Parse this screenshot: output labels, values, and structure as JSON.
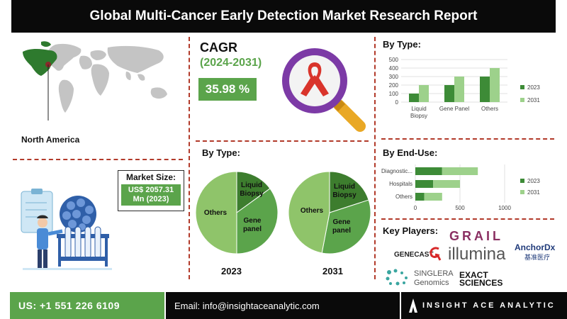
{
  "header": {
    "title": "Global Multi-Cancer Early Detection Market  Research Report"
  },
  "region": {
    "label": "North America"
  },
  "market_size": {
    "title": "Market Size:",
    "value_line1": "US$ 2057.31",
    "value_line2": "Mn (2023)"
  },
  "cagr": {
    "title": "CAGR",
    "years": "(2024-2031)",
    "value": "35.98 %"
  },
  "pie_section": {
    "title": "By Type:",
    "labels": {
      "others": "Others",
      "liquid1": "Liquid",
      "liquid2": "Biopsy",
      "gene1": "Gene",
      "gene2": "panel"
    }
  },
  "type_bar_section": {
    "title": "By Type:"
  },
  "enduse_section": {
    "title": "By End-Use:"
  },
  "key_players": {
    "title": "Key Players:",
    "grail": "GRAIL",
    "genecast": "GENECAST",
    "illumina": "illumina",
    "anchordx": "AnchorDx",
    "anchordx_sub": "基准医疗",
    "singlera": "SINGLERA",
    "singlera_sub": "Genomics",
    "exact1": "EXACT",
    "exact2": "SCIENCES"
  },
  "footer": {
    "phone": "US: +1 551 226 6109",
    "email": "Email: info@insightaceanalytic.com",
    "brand": "INSIGHT ACE ANALYTIC"
  },
  "colors": {
    "dark_green": "#3d8b37",
    "light_green": "#9dd18b",
    "pie_light": "#8fc46a",
    "pie_mid": "#5ba44b",
    "pie_dark": "#3d7d2e",
    "accent_red": "#b23a2a"
  },
  "chart_data": [
    {
      "type": "pie",
      "title": "2023",
      "slices": [
        {
          "name": "Liquid Biopsy",
          "value": 15
        },
        {
          "name": "Gene panel",
          "value": 35
        },
        {
          "name": "Others",
          "value": 50
        }
      ]
    },
    {
      "type": "pie",
      "title": "2031",
      "slices": [
        {
          "name": "Liquid Biopsy",
          "value": 20
        },
        {
          "name": "Gene panel",
          "value": 33
        },
        {
          "name": "Others",
          "value": 47
        }
      ]
    },
    {
      "type": "bar",
      "title": "By Type:",
      "orientation": "vertical",
      "categories": [
        "Liquid Biopsy",
        "Gene Panel",
        "Others"
      ],
      "category_labels": [
        [
          "Liquid",
          "Biopsy"
        ],
        [
          "Gene Panel"
        ],
        [
          "Others"
        ]
      ],
      "series": [
        {
          "name": "2023",
          "values": [
            100,
            200,
            300
          ]
        },
        {
          "name": "2031",
          "values": [
            200,
            300,
            400
          ]
        }
      ],
      "ylim": [
        0,
        500
      ],
      "yticks": [
        0,
        100,
        200,
        300,
        400,
        500
      ],
      "legend": "right"
    },
    {
      "type": "bar",
      "title": "By End-Use:",
      "orientation": "horizontal-stacked",
      "categories": [
        "Diagnostic...",
        "Hospitals",
        "Others"
      ],
      "series": [
        {
          "name": "2023",
          "values": [
            300,
            200,
            100
          ]
        },
        {
          "name": "2031",
          "values": [
            400,
            300,
            200
          ]
        }
      ],
      "xlim": [
        0,
        1000
      ],
      "xticks": [
        0,
        500,
        1000
      ],
      "legend": "right"
    }
  ]
}
